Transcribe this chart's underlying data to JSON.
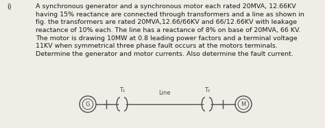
{
  "title_label": "i)",
  "paragraph": "A synchronous generator and a synchronous motor each rated 20MVA, 12.66KV\nhaving 15% reactance are connected through transformers and a line as shown in\nfig. the transformers are rated 20MVA,12.66/66KV and 66/12.66KV with leakage\nreactance of 10% each. The line has a reactance of 8% on base of 20MVA, 66 KV.\nThe motor is drawing 10MW at 0.8 leading power factors and a terminal voltage\n11KV when symmetrical three phase fault occurs at the motors terminals.\nDetermine the generator and motor currents. Also determine the fault current.",
  "bg_color": "#f0ece6",
  "text_color": "#1a1a1a",
  "line_label": "Line",
  "T1_label": "T₁",
  "T2_label": "T₂",
  "G_label": "G",
  "M_label": "M",
  "diagram_color": "#4a4a4a"
}
